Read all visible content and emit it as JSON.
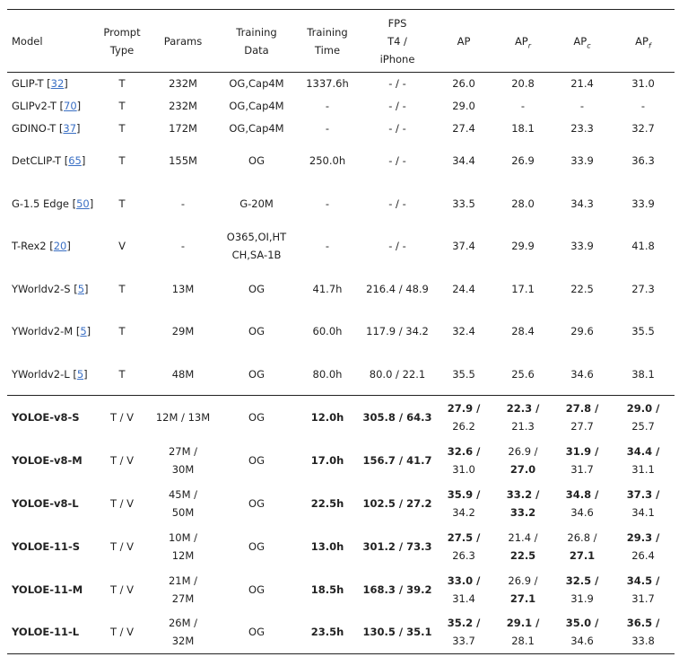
{
  "table": {
    "header": [
      [
        "Model"
      ],
      [
        "Prompt",
        "Type"
      ],
      [
        "Params"
      ],
      [
        "Training",
        "Data"
      ],
      [
        "Training",
        "Time"
      ],
      [
        "FPS",
        "T4 /",
        "iPhone"
      ],
      [
        "AP"
      ],
      [
        {
          "text": "AP",
          "sub": "r"
        }
      ],
      [
        {
          "text": "AP",
          "sub": "c"
        }
      ],
      [
        {
          "text": "AP",
          "sub": "f"
        }
      ]
    ],
    "groups": [
      {
        "rows": [
          [
            {
              "text": "GLIP-T [",
              "cite": "32",
              "end": "]"
            },
            "T",
            "232M",
            "OG,Cap4M",
            "1337.6h",
            "- / -",
            "26.0",
            "20.8",
            "21.4",
            "31.0"
          ],
          [
            {
              "text": "GLIPv2-T [",
              "cite": "70",
              "end": "]"
            },
            "T",
            "232M",
            "OG,Cap4M",
            "-",
            "- / -",
            "29.0",
            "-",
            "-",
            "-"
          ],
          [
            {
              "text": "GDINO-T [",
              "cite": "37",
              "end": "]"
            },
            "T",
            "172M",
            "OG,Cap4M",
            "-",
            "- / -",
            "27.4",
            "18.1",
            "23.3",
            "32.7"
          ],
          [
            {
              "text": "DetCLIP-T [",
              "cite": "65",
              "end": "]"
            },
            "T",
            "155M",
            "OG",
            "250.0h",
            "- / -",
            "34.4",
            "26.9",
            "33.9",
            "36.3"
          ],
          [
            {
              "text": "G-1.5 Edge [",
              "cite": "50",
              "end": "]"
            },
            "T",
            "-",
            "G-20M",
            "-",
            "- / -",
            "33.5",
            "28.0",
            "34.3",
            "33.9"
          ],
          [
            {
              "text": "T-Rex2 [",
              "cite": "20",
              "end": "]"
            },
            "V",
            "-",
            [
              "O365,OI,HT",
              "CH,SA-1B"
            ],
            "-",
            "- / -",
            "37.4",
            "29.9",
            "33.9",
            "41.8"
          ],
          [
            {
              "text": "YWorldv2-S [",
              "cite": "5",
              "end": "]"
            },
            "T",
            "13M",
            "OG",
            "41.7h",
            "216.4 / 48.9",
            "24.4",
            "17.1",
            "22.5",
            "27.3"
          ],
          [
            {
              "text": "YWorldv2-M [",
              "cite": "5",
              "end": "]"
            },
            "T",
            "29M",
            "OG",
            "60.0h",
            "117.9 / 34.2",
            "32.4",
            "28.4",
            "29.6",
            "35.5"
          ],
          [
            {
              "text": "YWorldv2-L [",
              "cite": "5",
              "end": "]"
            },
            "T",
            "48M",
            "OG",
            "80.0h",
            "80.0 / 22.1",
            "35.5",
            "25.6",
            "34.6",
            "38.1"
          ]
        ]
      },
      {
        "rows": [
          [
            {
              "b": "YOLOE-v8-S"
            },
            "T / V",
            "12M / 13M",
            "OG",
            {
              "b": "12.0h"
            },
            {
              "b": "305.8 / 64.3"
            },
            [
              {
                "b": "27.9 /"
              },
              "26.2"
            ],
            [
              {
                "b": "22.3 /"
              },
              "21.3"
            ],
            [
              {
                "b": "27.8 /"
              },
              "27.7"
            ],
            [
              {
                "b": "29.0 /"
              },
              "25.7"
            ]
          ],
          [
            {
              "b": "YOLOE-v8-M"
            },
            "T / V",
            [
              "27M /",
              "30M"
            ],
            "OG",
            {
              "b": "17.0h"
            },
            {
              "b": "156.7 / 41.7"
            },
            [
              {
                "b": "32.6 /"
              },
              "31.0"
            ],
            [
              "26.9 /",
              {
                "b": "27.0"
              }
            ],
            [
              {
                "b": "31.9 /"
              },
              "31.7"
            ],
            [
              {
                "b": "34.4 /"
              },
              "31.1"
            ]
          ],
          [
            {
              "b": "YOLOE-v8-L"
            },
            "T / V",
            [
              "45M /",
              "50M"
            ],
            "OG",
            {
              "b": "22.5h"
            },
            {
              "b": "102.5 / 27.2"
            },
            [
              {
                "b": "35.9 /"
              },
              "34.2"
            ],
            [
              {
                "b": "33.2 /"
              },
              {
                "b": "33.2"
              }
            ],
            [
              {
                "b": "34.8 /"
              },
              "34.6"
            ],
            [
              {
                "b": "37.3 /"
              },
              "34.1"
            ]
          ],
          [
            {
              "b": "YOLOE-11-S"
            },
            "T / V",
            [
              "10M /",
              "12M"
            ],
            "OG",
            {
              "b": "13.0h"
            },
            {
              "b": "301.2 / 73.3"
            },
            [
              {
                "b": "27.5 /"
              },
              "26.3"
            ],
            [
              "21.4 /",
              {
                "b": "22.5"
              }
            ],
            [
              "26.8 /",
              {
                "b": "27.1"
              }
            ],
            [
              {
                "b": "29.3 /"
              },
              "26.4"
            ]
          ],
          [
            {
              "b": "YOLOE-11-M"
            },
            "T / V",
            [
              "21M /",
              "27M"
            ],
            "OG",
            {
              "b": "18.5h"
            },
            {
              "b": "168.3 / 39.2"
            },
            [
              {
                "b": "33.0 /"
              },
              "31.4"
            ],
            [
              "26.9 /",
              {
                "b": "27.1"
              }
            ],
            [
              {
                "b": "32.5 /"
              },
              "31.9"
            ],
            [
              {
                "b": "34.5 /"
              },
              "31.7"
            ]
          ],
          [
            {
              "b": "YOLOE-11-L"
            },
            "T / V",
            [
              "26M /",
              "32M"
            ],
            "OG",
            {
              "b": "23.5h"
            },
            {
              "b": "130.5 / 35.1"
            },
            [
              {
                "b": "35.2 /"
              },
              "33.7"
            ],
            [
              {
                "b": "29.1 /"
              },
              "28.1"
            ],
            [
              {
                "b": "35.0 /"
              },
              "34.6"
            ],
            [
              {
                "b": "36.5 /"
              },
              "33.8"
            ]
          ]
        ]
      }
    ]
  }
}
